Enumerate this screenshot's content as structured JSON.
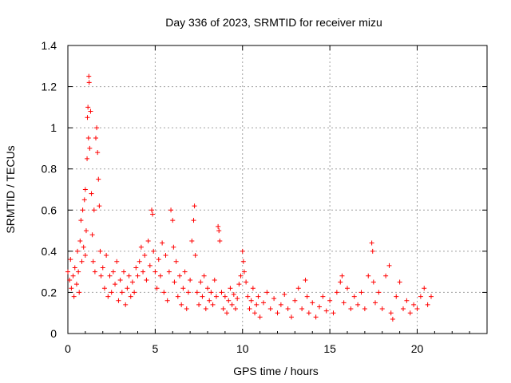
{
  "chart_data": {
    "type": "scatter",
    "title": "Day 336 of 2023, SRMTID for receiver mizu",
    "xlabel": "GPS time / hours",
    "ylabel": "SRMTID / TECUs",
    "xlim": [
      0,
      24
    ],
    "ylim": [
      0,
      1.4
    ],
    "x_ticks": [
      0,
      5,
      10,
      15,
      20
    ],
    "x_tick_labels": [
      "0",
      "5",
      "10",
      "15",
      "20"
    ],
    "y_ticks": [
      0,
      0.2,
      0.4,
      0.6,
      0.8,
      1.0,
      1.2,
      1.4
    ],
    "y_tick_labels": [
      "0",
      "0.2",
      "0.4",
      "0.6",
      "0.8",
      "1",
      "1.2",
      "1.4"
    ],
    "grid": true,
    "marker": "plus",
    "color": "#ff0000",
    "series": [
      {
        "name": "SRMTID",
        "points": [
          [
            0.0,
            0.3
          ],
          [
            0.1,
            0.26
          ],
          [
            0.15,
            0.36
          ],
          [
            0.2,
            0.22
          ],
          [
            0.3,
            0.28
          ],
          [
            0.35,
            0.18
          ],
          [
            0.4,
            0.32
          ],
          [
            0.5,
            0.24
          ],
          [
            0.55,
            0.4
          ],
          [
            0.6,
            0.3
          ],
          [
            0.65,
            0.2
          ],
          [
            0.7,
            0.45
          ],
          [
            0.75,
            0.55
          ],
          [
            0.8,
            0.35
          ],
          [
            0.85,
            0.6
          ],
          [
            0.9,
            0.42
          ],
          [
            0.95,
            0.65
          ],
          [
            1.0,
            0.7
          ],
          [
            1.0,
            0.38
          ],
          [
            1.05,
            0.5
          ],
          [
            1.1,
            0.85
          ],
          [
            1.12,
            1.05
          ],
          [
            1.15,
            1.1
          ],
          [
            1.18,
            0.95
          ],
          [
            1.2,
            1.25
          ],
          [
            1.22,
            1.22
          ],
          [
            1.25,
            0.9
          ],
          [
            1.3,
            1.08
          ],
          [
            1.35,
            0.68
          ],
          [
            1.4,
            0.48
          ],
          [
            1.45,
            0.35
          ],
          [
            1.5,
            0.6
          ],
          [
            1.55,
            0.3
          ],
          [
            1.6,
            0.95
          ],
          [
            1.65,
            1.0
          ],
          [
            1.7,
            0.88
          ],
          [
            1.75,
            0.75
          ],
          [
            1.8,
            0.62
          ],
          [
            1.85,
            0.4
          ],
          [
            1.9,
            0.28
          ],
          [
            2.0,
            0.32
          ],
          [
            2.1,
            0.22
          ],
          [
            2.2,
            0.38
          ],
          [
            2.3,
            0.18
          ],
          [
            2.4,
            0.28
          ],
          [
            2.5,
            0.2
          ],
          [
            2.6,
            0.3
          ],
          [
            2.7,
            0.24
          ],
          [
            2.8,
            0.35
          ],
          [
            2.9,
            0.16
          ],
          [
            3.0,
            0.26
          ],
          [
            3.1,
            0.2
          ],
          [
            3.2,
            0.3
          ],
          [
            3.3,
            0.14
          ],
          [
            3.4,
            0.22
          ],
          [
            3.5,
            0.28
          ],
          [
            3.6,
            0.18
          ],
          [
            3.7,
            0.25
          ],
          [
            3.8,
            0.2
          ],
          [
            3.9,
            0.32
          ],
          [
            4.0,
            0.28
          ],
          [
            4.1,
            0.35
          ],
          [
            4.2,
            0.42
          ],
          [
            4.3,
            0.3
          ],
          [
            4.4,
            0.38
          ],
          [
            4.5,
            0.26
          ],
          [
            4.6,
            0.45
          ],
          [
            4.7,
            0.33
          ],
          [
            4.8,
            0.6
          ],
          [
            4.85,
            0.58
          ],
          [
            4.9,
            0.4
          ],
          [
            5.0,
            0.3
          ],
          [
            5.1,
            0.22
          ],
          [
            5.2,
            0.36
          ],
          [
            5.3,
            0.28
          ],
          [
            5.4,
            0.44
          ],
          [
            5.5,
            0.2
          ],
          [
            5.6,
            0.38
          ],
          [
            5.7,
            0.16
          ],
          [
            5.8,
            0.3
          ],
          [
            5.9,
            0.6
          ],
          [
            6.0,
            0.55
          ],
          [
            6.05,
            0.42
          ],
          [
            6.1,
            0.25
          ],
          [
            6.2,
            0.35
          ],
          [
            6.3,
            0.18
          ],
          [
            6.4,
            0.28
          ],
          [
            6.5,
            0.14
          ],
          [
            6.6,
            0.22
          ],
          [
            6.7,
            0.3
          ],
          [
            6.8,
            0.12
          ],
          [
            6.9,
            0.2
          ],
          [
            7.0,
            0.26
          ],
          [
            7.1,
            0.45
          ],
          [
            7.2,
            0.55
          ],
          [
            7.25,
            0.62
          ],
          [
            7.3,
            0.38
          ],
          [
            7.4,
            0.2
          ],
          [
            7.5,
            0.14
          ],
          [
            7.6,
            0.25
          ],
          [
            7.7,
            0.18
          ],
          [
            7.8,
            0.28
          ],
          [
            7.9,
            0.12
          ],
          [
            8.0,
            0.22
          ],
          [
            8.1,
            0.16
          ],
          [
            8.2,
            0.2
          ],
          [
            8.3,
            0.14
          ],
          [
            8.4,
            0.26
          ],
          [
            8.5,
            0.18
          ],
          [
            8.6,
            0.52
          ],
          [
            8.65,
            0.5
          ],
          [
            8.7,
            0.45
          ],
          [
            8.8,
            0.2
          ],
          [
            8.9,
            0.12
          ],
          [
            9.0,
            0.18
          ],
          [
            9.1,
            0.1
          ],
          [
            9.2,
            0.16
          ],
          [
            9.3,
            0.22
          ],
          [
            9.4,
            0.14
          ],
          [
            9.5,
            0.19
          ],
          [
            9.6,
            0.12
          ],
          [
            9.7,
            0.17
          ],
          [
            9.8,
            0.24
          ],
          [
            9.9,
            0.28
          ],
          [
            10.0,
            0.4
          ],
          [
            10.05,
            0.35
          ],
          [
            10.1,
            0.3
          ],
          [
            10.2,
            0.25
          ],
          [
            10.3,
            0.18
          ],
          [
            10.4,
            0.12
          ],
          [
            10.5,
            0.16
          ],
          [
            10.6,
            0.22
          ],
          [
            10.7,
            0.1
          ],
          [
            10.8,
            0.14
          ],
          [
            10.9,
            0.18
          ],
          [
            11.0,
            0.08
          ],
          [
            11.2,
            0.15
          ],
          [
            11.4,
            0.2
          ],
          [
            11.6,
            0.12
          ],
          [
            11.8,
            0.17
          ],
          [
            12.0,
            0.1
          ],
          [
            12.2,
            0.14
          ],
          [
            12.4,
            0.19
          ],
          [
            12.6,
            0.12
          ],
          [
            12.8,
            0.08
          ],
          [
            13.0,
            0.16
          ],
          [
            13.2,
            0.22
          ],
          [
            13.4,
            0.12
          ],
          [
            13.6,
            0.26
          ],
          [
            13.7,
            0.18
          ],
          [
            13.8,
            0.1
          ],
          [
            14.0,
            0.15
          ],
          [
            14.2,
            0.08
          ],
          [
            14.4,
            0.13
          ],
          [
            14.6,
            0.18
          ],
          [
            14.8,
            0.11
          ],
          [
            15.0,
            0.16
          ],
          [
            15.2,
            0.1
          ],
          [
            15.4,
            0.2
          ],
          [
            15.6,
            0.25
          ],
          [
            15.7,
            0.28
          ],
          [
            15.8,
            0.15
          ],
          [
            16.0,
            0.22
          ],
          [
            16.2,
            0.12
          ],
          [
            16.4,
            0.18
          ],
          [
            16.6,
            0.14
          ],
          [
            16.8,
            0.2
          ],
          [
            17.0,
            0.12
          ],
          [
            17.2,
            0.28
          ],
          [
            17.4,
            0.44
          ],
          [
            17.45,
            0.4
          ],
          [
            17.5,
            0.25
          ],
          [
            17.6,
            0.15
          ],
          [
            17.8,
            0.2
          ],
          [
            18.0,
            0.12
          ],
          [
            18.2,
            0.28
          ],
          [
            18.4,
            0.33
          ],
          [
            18.5,
            0.1
          ],
          [
            18.6,
            0.07
          ],
          [
            18.8,
            0.18
          ],
          [
            19.0,
            0.25
          ],
          [
            19.2,
            0.12
          ],
          [
            19.4,
            0.16
          ],
          [
            19.6,
            0.1
          ],
          [
            19.8,
            0.14
          ],
          [
            20.0,
            0.12
          ],
          [
            20.2,
            0.18
          ],
          [
            20.4,
            0.22
          ],
          [
            20.6,
            0.14
          ],
          [
            20.8,
            0.18
          ]
        ]
      }
    ]
  }
}
